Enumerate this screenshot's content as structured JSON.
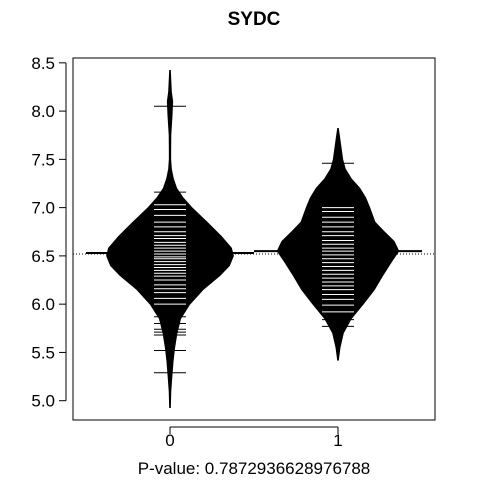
{
  "chart_data": {
    "type": "beanplot",
    "title": "SYDC",
    "xlabel": "P-value: 0.7872936628976788",
    "ylabel": "",
    "categories": [
      "0",
      "1"
    ],
    "ylim": [
      4.8,
      8.55
    ],
    "yticks": [
      "5.0",
      "5.5",
      "6.0",
      "6.5",
      "7.0",
      "7.5",
      "8.0",
      "8.5"
    ],
    "overall_mean": 6.52,
    "beans": [
      {
        "name": "0",
        "mean": 6.53,
        "range": [
          4.93,
          8.42
        ],
        "density": [
          [
            4.93,
            0.005
          ],
          [
            5.1,
            0.012
          ],
          [
            5.25,
            0.028
          ],
          [
            5.4,
            0.045
          ],
          [
            5.55,
            0.07
          ],
          [
            5.7,
            0.105
          ],
          [
            5.85,
            0.16
          ],
          [
            6.0,
            0.3
          ],
          [
            6.15,
            0.5
          ],
          [
            6.3,
            0.76
          ],
          [
            6.4,
            0.9
          ],
          [
            6.5,
            0.96
          ],
          [
            6.58,
            0.93
          ],
          [
            6.7,
            0.78
          ],
          [
            6.85,
            0.56
          ],
          [
            7.0,
            0.33
          ],
          [
            7.1,
            0.2
          ],
          [
            7.2,
            0.1
          ],
          [
            7.3,
            0.05
          ],
          [
            7.4,
            0.02
          ],
          [
            7.5,
            0.01
          ],
          [
            7.6,
            0.01
          ],
          [
            7.75,
            0.012
          ],
          [
            7.95,
            0.03
          ],
          [
            8.1,
            0.04
          ],
          [
            8.2,
            0.02
          ],
          [
            8.42,
            0.005
          ]
        ],
        "points": [
          8.05,
          7.16,
          7.03,
          6.98,
          6.92,
          6.85,
          6.8,
          6.75,
          6.71,
          6.68,
          6.64,
          6.61,
          6.58,
          6.55,
          6.52,
          6.49,
          6.47,
          6.44,
          6.41,
          6.38,
          6.35,
          6.32,
          6.29,
          6.25,
          6.2,
          6.16,
          6.12,
          6.06,
          6.0,
          5.93,
          5.87,
          5.8,
          5.74,
          5.71,
          5.68,
          5.52,
          5.29
        ]
      },
      {
        "name": "1",
        "mean": 6.55,
        "range": [
          5.42,
          7.82
        ],
        "density": [
          [
            5.42,
            0.005
          ],
          [
            5.55,
            0.03
          ],
          [
            5.7,
            0.08
          ],
          [
            5.85,
            0.2
          ],
          [
            6.0,
            0.38
          ],
          [
            6.15,
            0.55
          ],
          [
            6.3,
            0.68
          ],
          [
            6.45,
            0.82
          ],
          [
            6.55,
            0.92
          ],
          [
            6.65,
            0.85
          ],
          [
            6.75,
            0.7
          ],
          [
            6.85,
            0.56
          ],
          [
            7.0,
            0.48
          ],
          [
            7.1,
            0.42
          ],
          [
            7.2,
            0.33
          ],
          [
            7.3,
            0.2
          ],
          [
            7.4,
            0.11
          ],
          [
            7.5,
            0.07
          ],
          [
            7.6,
            0.05
          ],
          [
            7.7,
            0.03
          ],
          [
            7.82,
            0.005
          ]
        ],
        "points": [
          7.46,
          7.0,
          6.96,
          6.9,
          6.85,
          6.8,
          6.75,
          6.71,
          6.66,
          6.62,
          6.58,
          6.55,
          6.51,
          6.47,
          6.43,
          6.39,
          6.35,
          6.31,
          6.27,
          6.23,
          6.19,
          6.15,
          6.1,
          6.05,
          5.99,
          5.92,
          5.84,
          5.77
        ]
      }
    ],
    "colors": {
      "bean_fill": "#000000",
      "points": "#ffffff",
      "axis": "#000000",
      "background": "#ffffff"
    },
    "grid": false,
    "legend": "none"
  }
}
